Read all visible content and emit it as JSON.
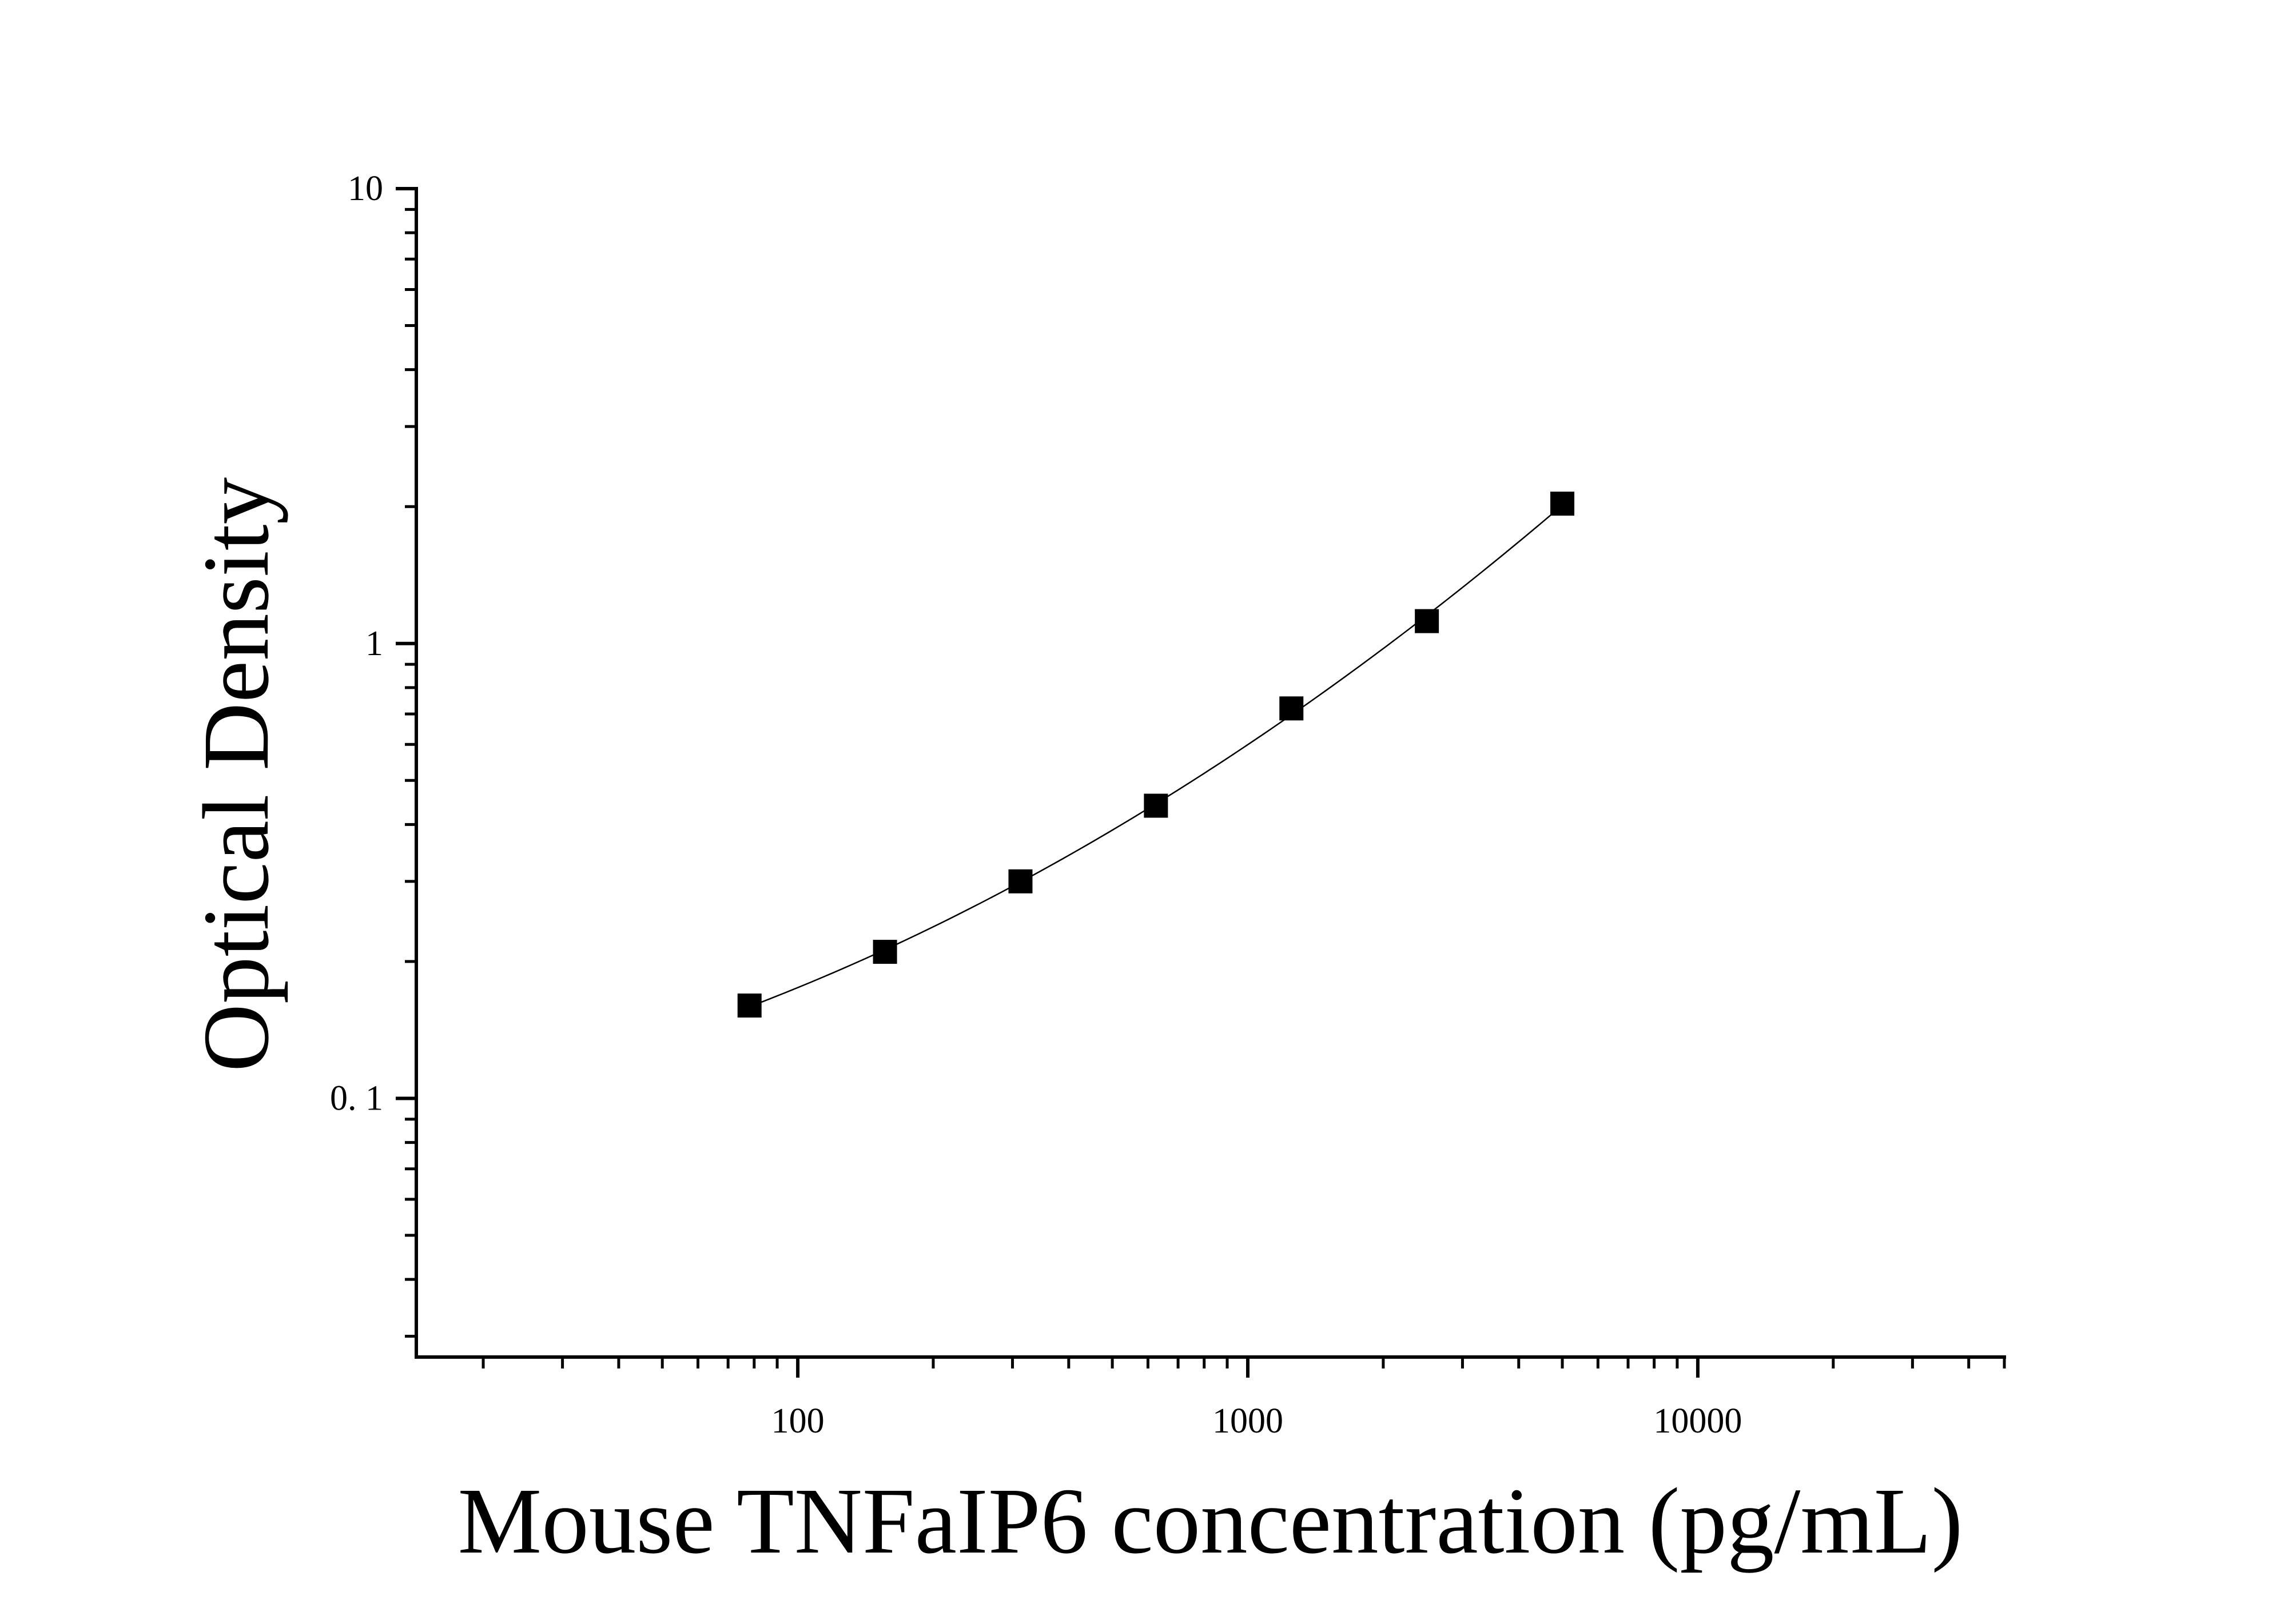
{
  "chart_data": {
    "type": "scatter",
    "title": "",
    "xlabel": "Mouse TNFaIP6 concentration (pg/mL)",
    "ylabel": "Optical Density",
    "x_scale": "log",
    "y_scale": "log",
    "xlim": [
      14.2,
      48000
    ],
    "ylim": [
      0.027,
      10
    ],
    "x_ticks": [
      100,
      1000,
      10000
    ],
    "x_tick_labels": [
      "100",
      "1000",
      "10000"
    ],
    "y_ticks": [
      0.1,
      1,
      10
    ],
    "y_tick_labels": [
      "0. 1",
      "1",
      "10"
    ],
    "grid": false,
    "legend": "none",
    "marker": "square",
    "series": [
      {
        "points": [
          {
            "x": 78.13,
            "y": 0.16
          },
          {
            "x": 156.25,
            "y": 0.21
          },
          {
            "x": 312.5,
            "y": 0.3
          },
          {
            "x": 625,
            "y": 0.44
          },
          {
            "x": 1250,
            "y": 0.72
          },
          {
            "x": 2500,
            "y": 1.12
          },
          {
            "x": 5000,
            "y": 2.03
          }
        ]
      }
    ],
    "fit_curve": true
  }
}
